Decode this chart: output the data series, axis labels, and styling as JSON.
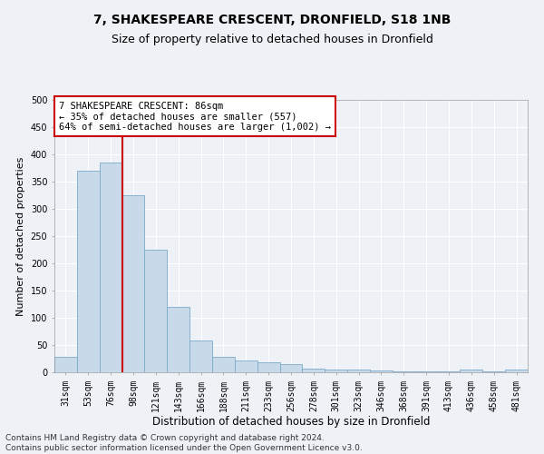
{
  "title": "7, SHAKESPEARE CRESCENT, DRONFIELD, S18 1NB",
  "subtitle": "Size of property relative to detached houses in Dronfield",
  "xlabel": "Distribution of detached houses by size in Dronfield",
  "ylabel": "Number of detached properties",
  "bar_color": "#c8daea",
  "bar_edge_color": "#7aaac8",
  "background_color": "#eef2f7",
  "grid_color": "#ffffff",
  "categories": [
    "31sqm",
    "53sqm",
    "76sqm",
    "98sqm",
    "121sqm",
    "143sqm",
    "166sqm",
    "188sqm",
    "211sqm",
    "233sqm",
    "256sqm",
    "278sqm",
    "301sqm",
    "323sqm",
    "346sqm",
    "368sqm",
    "391sqm",
    "413sqm",
    "436sqm",
    "458sqm",
    "481sqm"
  ],
  "values": [
    28,
    370,
    385,
    325,
    225,
    120,
    58,
    28,
    22,
    18,
    15,
    7,
    5,
    5,
    3,
    2,
    1,
    1,
    5,
    1,
    5
  ],
  "ylim": [
    0,
    500
  ],
  "yticks": [
    0,
    50,
    100,
    150,
    200,
    250,
    300,
    350,
    400,
    450,
    500
  ],
  "vline_x": 2.5,
  "vline_color": "#cc0000",
  "annotation_text": "7 SHAKESPEARE CRESCENT: 86sqm\n← 35% of detached houses are smaller (557)\n64% of semi-detached houses are larger (1,002) →",
  "annotation_box_color": "#ffffff",
  "annotation_box_edge": "#cc0000",
  "footer_line1": "Contains HM Land Registry data © Crown copyright and database right 2024.",
  "footer_line2": "Contains public sector information licensed under the Open Government Licence v3.0.",
  "title_fontsize": 10,
  "subtitle_fontsize": 9,
  "xlabel_fontsize": 8.5,
  "ylabel_fontsize": 8,
  "tick_fontsize": 7,
  "annotation_fontsize": 7.5,
  "footer_fontsize": 6.5
}
